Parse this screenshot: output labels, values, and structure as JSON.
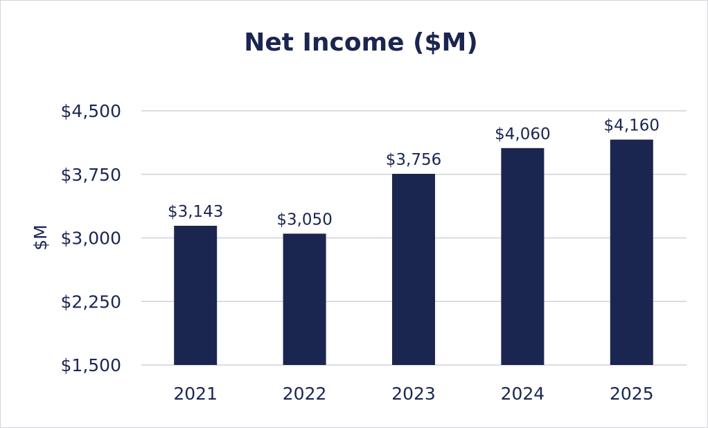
{
  "chart_data": {
    "type": "bar",
    "title": "Net Income ($M)",
    "xlabel": "",
    "ylabel": "$M",
    "categories": [
      "2021",
      "2022",
      "2023",
      "2024",
      "2025"
    ],
    "values": [
      3143,
      3050,
      3756,
      4060,
      4160
    ],
    "value_labels": [
      "$3,143",
      "$3,050",
      "$3,756",
      "$4,060",
      "$4,160"
    ],
    "ylim": [
      1500,
      4500
    ],
    "yticks": [
      1500,
      2250,
      3000,
      3750,
      4500
    ],
    "ytick_labels": [
      "$1,500",
      "$2,250",
      "$3,000",
      "$3,750",
      "$4,500"
    ],
    "grid": true,
    "legend": "none",
    "colors": {
      "bar": "#1a2650",
      "grid": "#cfd0dc",
      "text": "#1a2650"
    }
  }
}
